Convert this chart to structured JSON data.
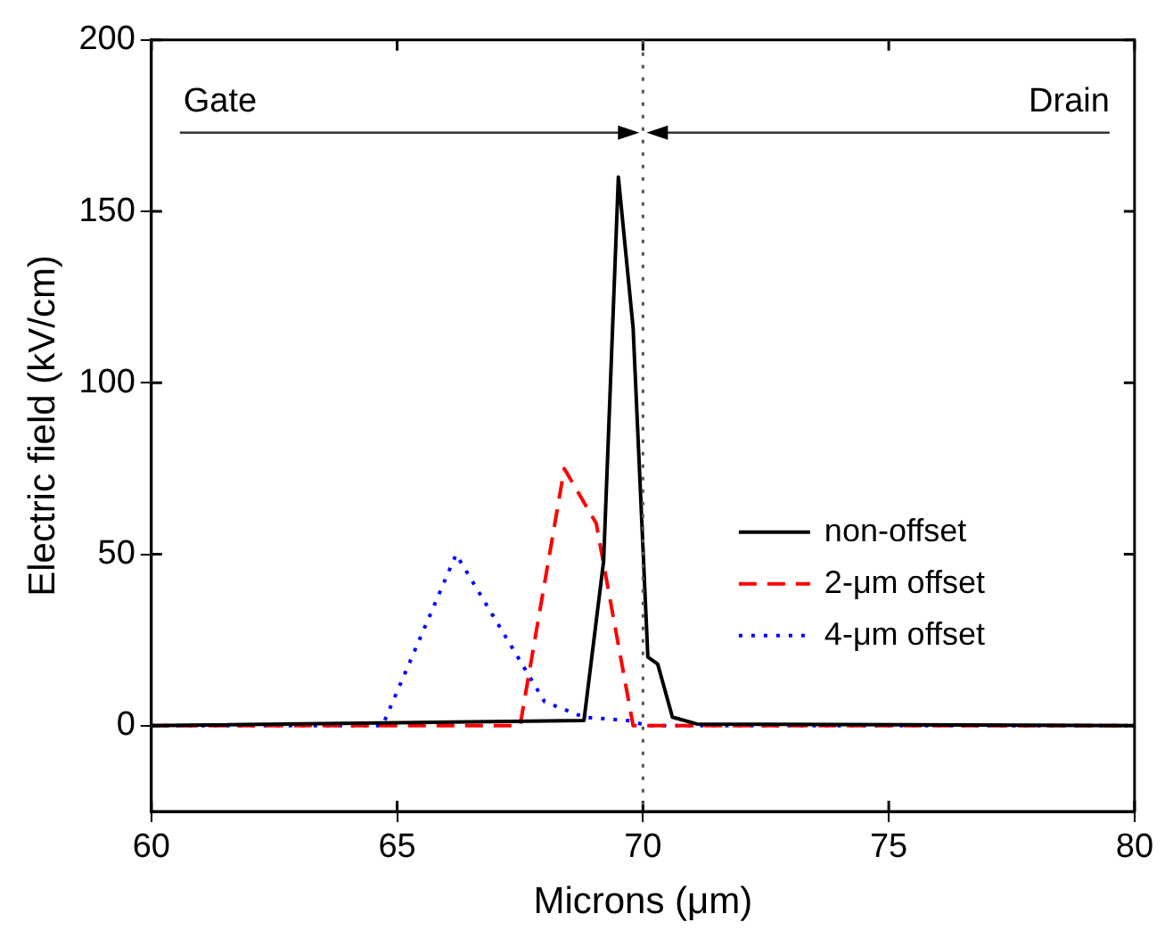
{
  "chart_data": {
    "type": "line",
    "xlabel": "Microns (μm)",
    "ylabel": "Electric field (kV/cm)",
    "xlim": [
      60,
      80
    ],
    "xticks": [
      60,
      65,
      70,
      75,
      80
    ],
    "ylim": [
      -25,
      200
    ],
    "yticks": [
      0,
      50,
      100,
      150,
      200
    ],
    "grid": false,
    "legend": "right",
    "marker": "none",
    "series": [
      {
        "name": "non-offset",
        "color": "#000000",
        "line_style": "solid",
        "x": [
          60,
          68.8,
          69.2,
          69.5,
          69.8,
          70.1,
          70.3,
          70.6,
          71.1,
          80
        ],
        "values": [
          0,
          1.5,
          48,
          160,
          116,
          20,
          18,
          2.5,
          0.5,
          0
        ]
      },
      {
        "name": "2-μm offset",
        "color": "#ff0000",
        "line_style": "dashed",
        "x": [
          60,
          67.5,
          68.4,
          69.05,
          69.8,
          80
        ],
        "values": [
          0,
          0,
          75,
          59,
          0,
          0
        ]
      },
      {
        "name": "4-μm offset",
        "color": "#0000ff",
        "line_style": "dotted",
        "x": [
          60,
          64.7,
          66.2,
          68,
          68.8,
          69.7,
          70.1,
          80
        ],
        "values": [
          0,
          0,
          50,
          7,
          2.5,
          1.5,
          0,
          0
        ]
      }
    ],
    "ref_lines": [
      {
        "axis": "x",
        "value": 70,
        "color": "#555555",
        "line_style": "dotted"
      }
    ],
    "annotations": [
      "Gate",
      "Drain"
    ]
  }
}
